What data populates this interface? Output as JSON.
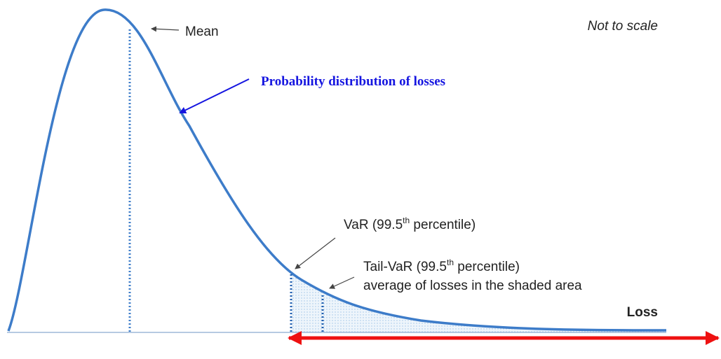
{
  "labels": {
    "mean": "Mean",
    "not_to_scale": "Not to scale",
    "distribution": "Probability distribution of losses",
    "var": {
      "before": "VaR (99.5",
      "sup": "th",
      "after": " percentile)"
    },
    "tail_var": {
      "before": "Tail-VaR (99.5",
      "sup": "th",
      "after": " percentile)"
    },
    "tail_var_line2": "average of losses in the shaded area",
    "axis": "Loss"
  }
}
